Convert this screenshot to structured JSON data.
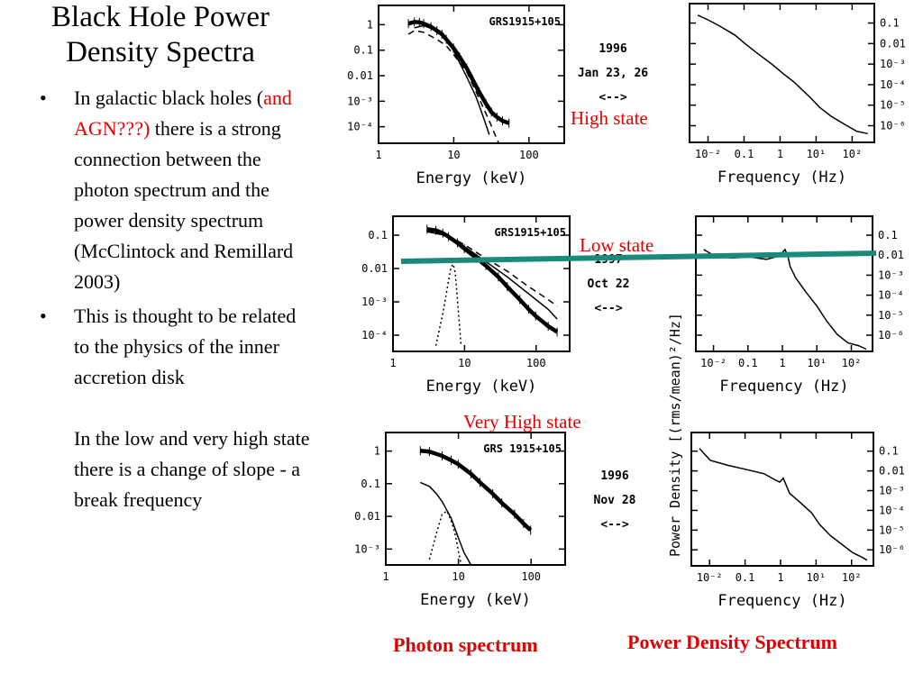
{
  "slide": {
    "title_line1": "Black Hole Power",
    "title_line2": "Density Spectra",
    "bullet1_a": "In galactic black holes (",
    "bullet1_red": "and AGN???)",
    "bullet1_b": " there is a strong connection between the photon spectrum and the power density spectrum (McClintock and Remillard 2003)",
    "bullet2": "This is thought to be related to the physics of the inner accretion disk",
    "bullet2_para": "In the low and very high state there is a change of slope - a break frequency"
  },
  "figure": {
    "state_labels": [
      "High state",
      "Low  state",
      "Very High  state"
    ],
    "column_labels": [
      "Photon spectrum",
      "Power Density Spectrum"
    ],
    "pds_axis_label": "Power Density [(rms/mean)²/Hz]",
    "highlight_color": "#1a8a7a",
    "label_color": "#e00000"
  },
  "chart_data": [
    {
      "type": "line",
      "name": "photon-high",
      "annotation": "GRS1915+105",
      "epoch": [
        "1996",
        "Jan 23, 26",
        "<-->"
      ],
      "xlabel": "Energy (keV)",
      "xscale": "log",
      "yscale": "log",
      "xlim": [
        1,
        300
      ],
      "ylim": [
        5e-05,
        3
      ],
      "xticks": [
        "1",
        "10",
        "100"
      ],
      "yticks": [
        "1",
        "0.1",
        "0.01",
        "10⁻³",
        "10⁻⁴"
      ],
      "series": [
        {
          "style": "data",
          "x": [
            2.5,
            3,
            3.5,
            4,
            5,
            6,
            7,
            8,
            10,
            12,
            15,
            18,
            22,
            27,
            32,
            38,
            45,
            55
          ],
          "y": [
            0.7,
            0.8,
            0.78,
            0.7,
            0.55,
            0.4,
            0.3,
            0.2,
            0.1,
            0.05,
            0.02,
            0.008,
            0.003,
            0.0012,
            0.0006,
            0.0004,
            0.0003,
            0.00025
          ]
        },
        {
          "style": "dashed",
          "x": [
            2.5,
            3,
            4,
            6,
            8,
            10,
            15,
            20,
            30,
            40
          ],
          "y": [
            0.3,
            0.4,
            0.35,
            0.2,
            0.12,
            0.06,
            0.015,
            0.003,
            0.0003,
            5e-05
          ]
        },
        {
          "style": "solid",
          "x": [
            3,
            4,
            6,
            8,
            10,
            15,
            20,
            25,
            30
          ],
          "y": [
            0.5,
            0.6,
            0.4,
            0.2,
            0.08,
            0.01,
            0.002,
            0.0004,
            0.0001
          ]
        }
      ]
    },
    {
      "type": "line",
      "name": "pds-high",
      "xlabel": "Frequency (Hz)",
      "xscale": "log",
      "yscale": "log",
      "xlim": [
        0.003,
        300
      ],
      "ylim": [
        5e-06,
        0.3
      ],
      "xticks": [
        "10⁻²",
        "0.1",
        "1",
        "10¹",
        "10²"
      ],
      "yticks": [
        "0.1",
        "0.01",
        "10⁻³",
        "10⁻⁴",
        "10⁻⁵",
        "10⁻⁶"
      ],
      "series": [
        {
          "style": "solid",
          "x": [
            0.005,
            0.01,
            0.02,
            0.05,
            0.1,
            0.2,
            0.5,
            1,
            2,
            5,
            10,
            20,
            50,
            100,
            200
          ],
          "y": [
            0.12,
            0.08,
            0.05,
            0.025,
            0.012,
            0.006,
            0.0025,
            0.0012,
            0.0006,
            0.0002,
            8e-05,
            4e-05,
            2e-05,
            1.2e-05,
            1e-05
          ]
        }
      ]
    },
    {
      "type": "line",
      "name": "photon-low",
      "annotation": "GRS1915+105",
      "epoch": [
        "1997",
        "Oct 22",
        "<-->"
      ],
      "xlabel": "Energy (keV)",
      "xscale": "log",
      "yscale": "log",
      "xlim": [
        1,
        300
      ],
      "ylim": [
        2e-05,
        0.3
      ],
      "xticks": [
        "1",
        "10",
        "100"
      ],
      "yticks": [
        "0.1",
        "0.01",
        "10⁻³",
        "10⁻⁴"
      ],
      "series": [
        {
          "style": "data",
          "x": [
            3,
            4,
            5,
            6,
            8,
            10,
            15,
            20,
            30,
            40,
            60,
            80,
            100,
            150,
            200
          ],
          "y": [
            0.12,
            0.11,
            0.09,
            0.07,
            0.045,
            0.03,
            0.015,
            0.009,
            0.004,
            0.002,
            0.0008,
            0.0004,
            0.00025,
            0.00012,
            8e-05
          ]
        },
        {
          "style": "solid",
          "x": [
            3,
            5,
            8,
            10,
            20,
            40,
            80,
            150,
            200
          ],
          "y": [
            0.1,
            0.08,
            0.05,
            0.035,
            0.012,
            0.004,
            0.0012,
            0.0004,
            0.0002
          ]
        },
        {
          "style": "dashed",
          "x": [
            3,
            5,
            10,
            20,
            40,
            80,
            150,
            200
          ],
          "y": [
            0.1,
            0.09,
            0.04,
            0.015,
            0.006,
            0.002,
            0.0008,
            0.0005
          ]
        },
        {
          "style": "dotted",
          "x": [
            4,
            5,
            6,
            6.5,
            7,
            7.5,
            8,
            9
          ],
          "y": [
            3e-05,
            0.0003,
            0.003,
            0.008,
            0.01,
            0.005,
            0.0008,
            3e-05
          ]
        }
      ]
    },
    {
      "type": "line",
      "name": "pds-low",
      "xlabel": "Frequency (Hz)",
      "xscale": "log",
      "yscale": "log",
      "xlim": [
        0.003,
        300
      ],
      "ylim": [
        5e-06,
        0.3
      ],
      "xticks": [
        "10⁻²",
        "0.1",
        "1",
        "10¹",
        "10²"
      ],
      "yticks": [
        "0.1",
        "0.01",
        "10⁻³",
        "10⁻⁴",
        "10⁻⁵",
        "10⁻⁶"
      ],
      "series": [
        {
          "style": "solid",
          "x": [
            0.005,
            0.01,
            0.03,
            0.1,
            0.3,
            0.7,
            1,
            1.2,
            1.4,
            2,
            4,
            8,
            15,
            30,
            60,
            120,
            200
          ],
          "y": [
            0.02,
            0.012,
            0.01,
            0.011,
            0.009,
            0.012,
            0.02,
            0.012,
            0.005,
            0.002,
            0.0006,
            0.0002,
            6e-05,
            2e-05,
            1e-05,
            8e-06,
            6e-06
          ]
        }
      ]
    },
    {
      "type": "line",
      "name": "photon-veryhigh",
      "annotation": "GRS 1915+105",
      "epoch": [
        "1996",
        "Nov 28",
        "<-->"
      ],
      "xlabel": "Energy (keV)",
      "xscale": "log",
      "yscale": "log",
      "xlim": [
        1,
        300
      ],
      "ylim": [
        0.0002,
        3
      ],
      "xticks": [
        "1",
        "10",
        "100"
      ],
      "yticks": [
        "1",
        "0.1",
        "0.01",
        "10⁻³"
      ],
      "series": [
        {
          "style": "data",
          "x": [
            3,
            4,
            6,
            8,
            10,
            15,
            20,
            30,
            40,
            60,
            80,
            100
          ],
          "y": [
            0.8,
            0.75,
            0.55,
            0.4,
            0.3,
            0.15,
            0.08,
            0.035,
            0.018,
            0.008,
            0.004,
            0.0025
          ]
        },
        {
          "style": "solid",
          "x": [
            3,
            4,
            5,
            6,
            8,
            10,
            12,
            15
          ],
          "y": [
            0.08,
            0.06,
            0.035,
            0.02,
            0.006,
            0.0015,
            0.0005,
            0.0002
          ]
        },
        {
          "style": "dotted",
          "x": [
            4,
            5,
            6,
            7,
            8,
            9,
            10,
            11
          ],
          "y": [
            0.0003,
            0.002,
            0.008,
            0.01,
            0.005,
            0.002,
            0.0006,
            0.0002
          ]
        }
      ]
    },
    {
      "type": "line",
      "name": "pds-veryhigh",
      "xlabel": "Frequency (Hz)",
      "xscale": "log",
      "yscale": "log",
      "xlim": [
        0.003,
        300
      ],
      "ylim": [
        5e-06,
        0.3
      ],
      "xticks": [
        "10⁻²",
        "0.1",
        "1",
        "10¹",
        "10²"
      ],
      "yticks": [
        "0.1",
        "0.01",
        "10⁻³",
        "10⁻⁴",
        "10⁻⁵",
        "10⁻⁶"
      ],
      "series": [
        {
          "style": "solid",
          "x": [
            0.005,
            0.01,
            0.03,
            0.1,
            0.3,
            0.6,
            0.8,
            1,
            1.2,
            1.5,
            3,
            6,
            10,
            20,
            40,
            80,
            150,
            200
          ],
          "y": [
            0.08,
            0.03,
            0.02,
            0.014,
            0.01,
            0.006,
            0.005,
            0.007,
            0.004,
            0.002,
            0.0009,
            0.0004,
            0.00015,
            6e-05,
            3e-05,
            1.5e-05,
            1e-05,
            8e-06
          ]
        }
      ]
    }
  ]
}
